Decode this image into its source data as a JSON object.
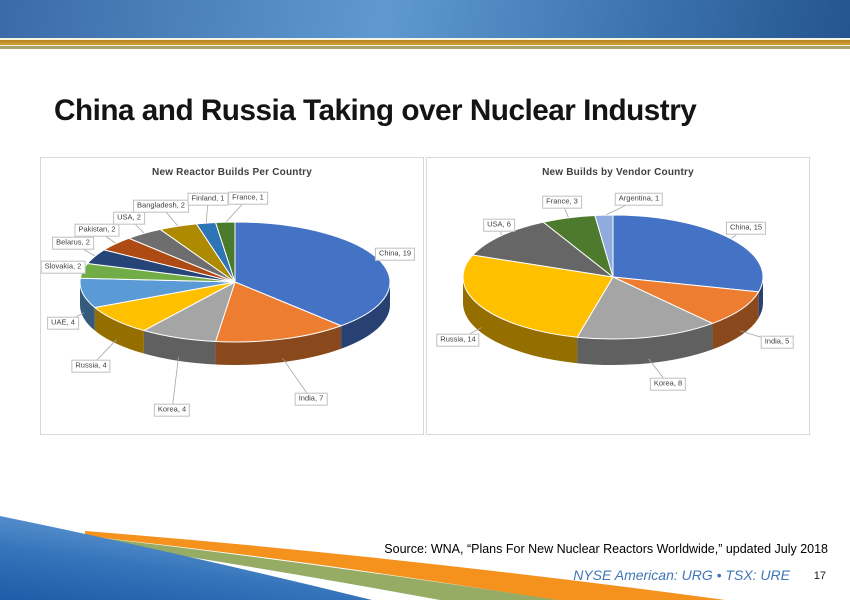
{
  "slide": {
    "title": "China and Russia Taking over Nuclear Industry",
    "source_text": "Source: WNA, “Plans For New Nuclear Reactors Worldwide,” updated July 2018",
    "ticker_text": "NYSE American: URG • TSX: URE",
    "page_number": "17"
  },
  "theme": {
    "header_gradient_left": "#3a6ba8",
    "header_gradient_mid": "#5f99d0",
    "header_gradient_right": "#24558f",
    "gold_stripe": "#c9952b",
    "olive_stripe": "#a8a26b",
    "ticker_color": "#4076b5",
    "swoosh_orange": "#f5921e",
    "swoosh_green": "#96ab64",
    "swoosh_blue_light": "#6fa3dc",
    "swoosh_blue_dark": "#1e5ca8",
    "panel_border": "#d9d9d9",
    "chart_title_color": "#404040",
    "leader_line_color": "#a6a6a6"
  },
  "chart_data": [
    {
      "type": "pie",
      "style": "3d",
      "title": "New Reactor Builds Per Country",
      "label_format": "name, value",
      "labels": [
        "China",
        "India",
        "Korea",
        "Russia",
        "UAE",
        "Slovakia",
        "Belarus",
        "Pakistan",
        "USA",
        "Bangladesh",
        "Finland",
        "France"
      ],
      "values": [
        19,
        7,
        4,
        4,
        4,
        2,
        2,
        2,
        2,
        2,
        1,
        1
      ],
      "colors": [
        "#4472C4",
        "#ED7D31",
        "#A5A5A5",
        "#FFC000",
        "#5B9BD5",
        "#70AD47",
        "#264478",
        "#AE4A14",
        "#6E6E6E",
        "#AD8A00",
        "#2E75B6",
        "#4A7A2C"
      ],
      "total": 50,
      "legend": "none",
      "start_angle_deg_from_north": 0,
      "direction": "clockwise"
    },
    {
      "type": "pie",
      "style": "3d",
      "title": "New Builds by Vendor Country",
      "label_format": "name, value",
      "labels": [
        "China",
        "India",
        "Korea",
        "Russia",
        "USA",
        "France",
        "Argentina"
      ],
      "values": [
        15,
        5,
        8,
        14,
        6,
        3,
        1
      ],
      "colors": [
        "#4472C4",
        "#ED7D31",
        "#A5A5A5",
        "#FFC000",
        "#666666",
        "#4E7A2E",
        "#8FAADC"
      ],
      "total": 52,
      "legend": "none",
      "start_angle_deg_from_north": 0,
      "direction": "clockwise"
    }
  ]
}
